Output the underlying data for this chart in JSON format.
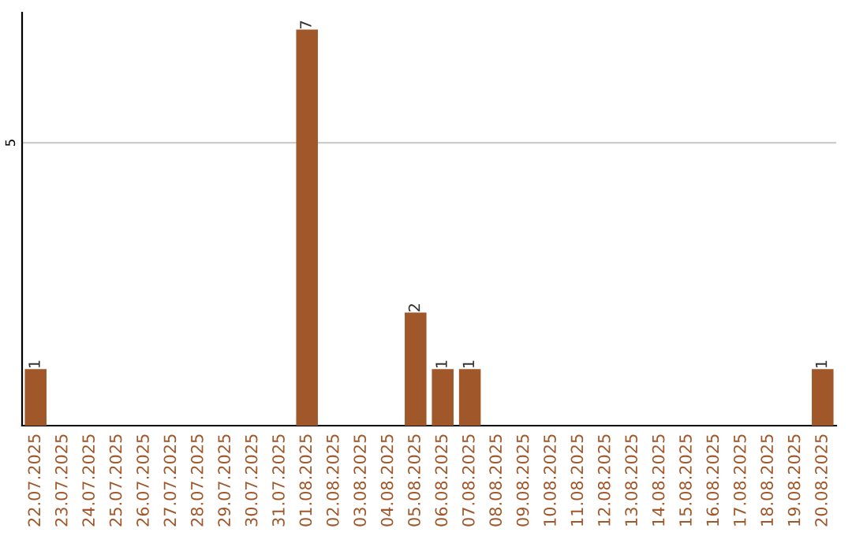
{
  "chart_data": {
    "type": "bar",
    "categories": [
      "22.07.2025",
      "23.07.2025",
      "24.07.2025",
      "25.07.2025",
      "26.07.2025",
      "27.07.2025",
      "28.07.2025",
      "29.07.2025",
      "30.07.2025",
      "31.07.2025",
      "01.08.2025",
      "02.08.2025",
      "03.08.2025",
      "04.08.2025",
      "05.08.2025",
      "06.08.2025",
      "07.08.2025",
      "08.08.2025",
      "09.08.2025",
      "10.08.2025",
      "11.08.2025",
      "12.08.2025",
      "13.08.2025",
      "14.08.2025",
      "15.08.2025",
      "16.08.2025",
      "17.08.2025",
      "18.08.2025",
      "19.08.2025",
      "20.08.2025"
    ],
    "values": [
      1,
      0,
      0,
      0,
      0,
      0,
      0,
      0,
      0,
      0,
      7,
      0,
      0,
      0,
      2,
      1,
      1,
      0,
      0,
      0,
      0,
      0,
      0,
      0,
      0,
      0,
      0,
      0,
      0,
      1
    ],
    "value_labels": [
      "1",
      null,
      null,
      null,
      null,
      null,
      null,
      null,
      null,
      null,
      "7",
      null,
      null,
      null,
      "2",
      "1",
      "1",
      null,
      null,
      null,
      null,
      null,
      null,
      null,
      null,
      null,
      null,
      null,
      null,
      "1"
    ],
    "color": "#a0572a",
    "ylim": [
      0,
      7.3
    ],
    "yticks": [
      5
    ],
    "grid": "y"
  }
}
